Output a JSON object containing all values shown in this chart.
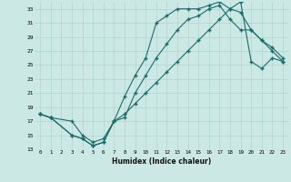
{
  "xlabel": "Humidex (Indice chaleur)",
  "bg_color": "#cce8e5",
  "grid_color": "#aed4d0",
  "line_color": "#1a6b6b",
  "xlim": [
    -0.5,
    23.5
  ],
  "ylim": [
    13,
    34
  ],
  "xticks": [
    0,
    1,
    2,
    3,
    4,
    5,
    6,
    7,
    8,
    9,
    10,
    11,
    12,
    13,
    14,
    15,
    16,
    17,
    18,
    19,
    20,
    21,
    22,
    23
  ],
  "yticks": [
    13,
    15,
    17,
    19,
    21,
    23,
    25,
    27,
    29,
    31,
    33
  ],
  "curve1_x": [
    0,
    1,
    3,
    4,
    5,
    6,
    7,
    8,
    9,
    10,
    11,
    12,
    13,
    14,
    15,
    16,
    17,
    18,
    19,
    20,
    21,
    22,
    23
  ],
  "curve1_y": [
    18,
    17.5,
    15,
    14.5,
    13.5,
    14,
    17,
    20.5,
    23.5,
    26,
    31,
    32,
    33,
    33,
    33,
    33.5,
    34,
    33,
    32.5,
    30,
    28.5,
    27.5,
    26
  ],
  "curve2_x": [
    0,
    1,
    3,
    4,
    5,
    6,
    7,
    8,
    9,
    10,
    11,
    12,
    13,
    14,
    15,
    16,
    17,
    18,
    19,
    20,
    21,
    22,
    23
  ],
  "curve2_y": [
    18,
    17.5,
    17,
    15,
    14,
    14.5,
    17,
    17.5,
    21,
    23.5,
    26,
    28,
    30,
    31.5,
    32,
    33,
    33.5,
    31.5,
    30,
    30,
    28.5,
    27,
    25.5
  ],
  "curve3_x": [
    0,
    1,
    3,
    4,
    5,
    6,
    7,
    8,
    9,
    10,
    11,
    12,
    13,
    14,
    15,
    16,
    17,
    18,
    19,
    20,
    21,
    22,
    23
  ],
  "curve3_y": [
    18,
    17.5,
    15,
    14.5,
    13.5,
    14,
    17,
    18,
    19.5,
    21,
    22.5,
    24,
    25.5,
    27,
    28.5,
    30,
    31.5,
    33,
    34,
    25.5,
    24.5,
    26,
    25.5
  ]
}
